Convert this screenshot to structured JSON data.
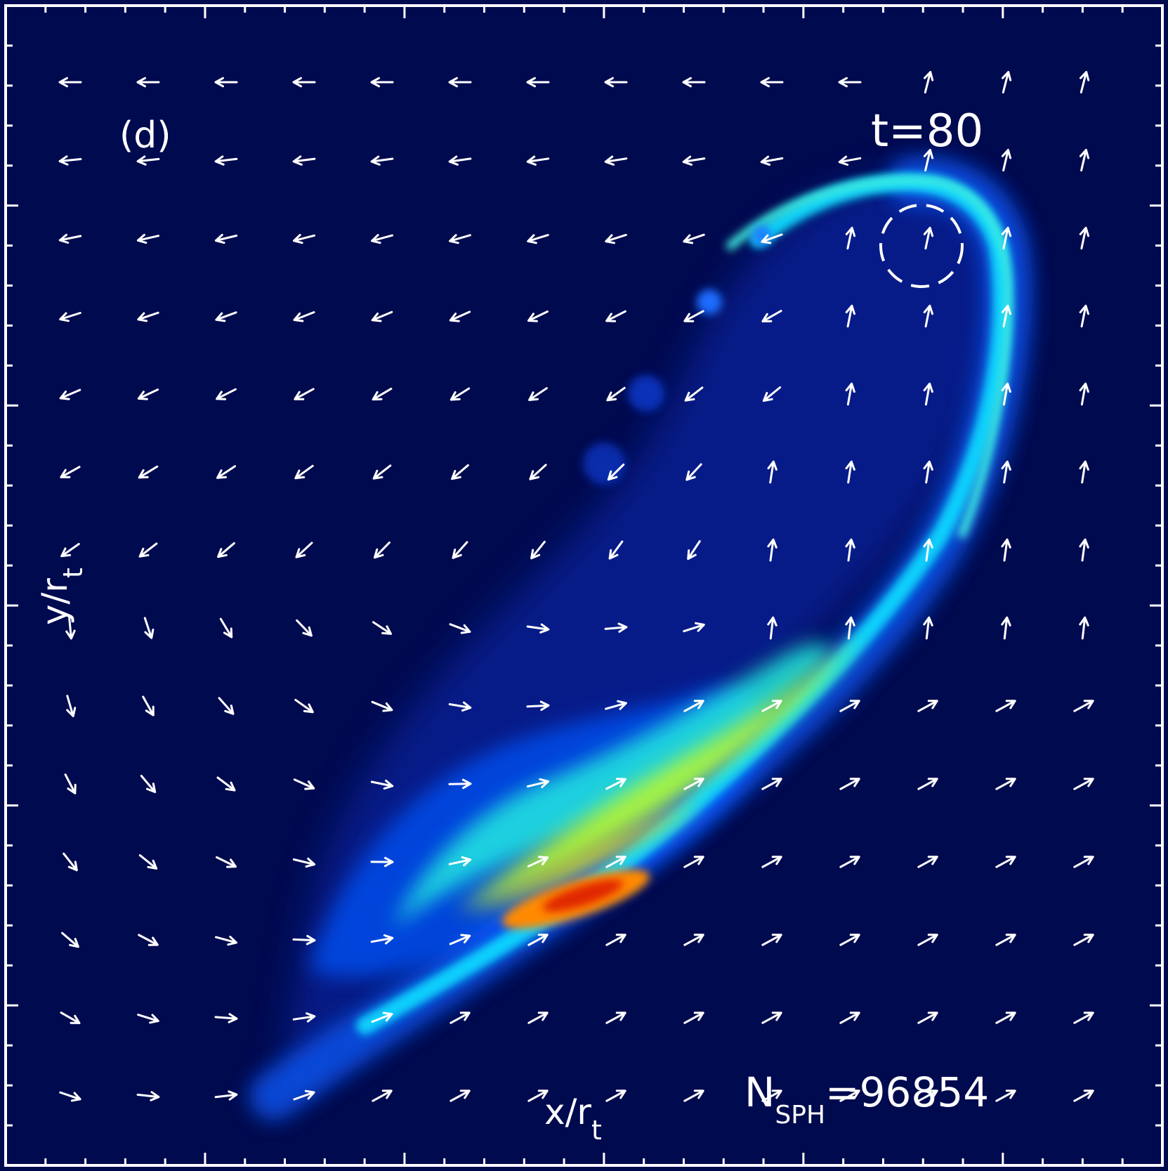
{
  "panel_label": "(d)",
  "time_label": "t=80",
  "x_axis_label": {
    "main": "x/r",
    "sub": "t"
  },
  "y_axis_label": {
    "main": "y/r",
    "sub": "t"
  },
  "particle_count": {
    "prefix": "N",
    "sub": "SPH",
    "value": "=96854"
  },
  "colors": {
    "background": "#000a4f",
    "frame": "#ffffff",
    "colormap": [
      "#001a9a",
      "#0044e8",
      "#00b8ff",
      "#00f0d0",
      "#b8ff30",
      "#ffe600",
      "#ff8a00",
      "#e02800"
    ]
  },
  "icons": [
    "velocity-arrow-icon",
    "dashed-circle-icon"
  ]
}
